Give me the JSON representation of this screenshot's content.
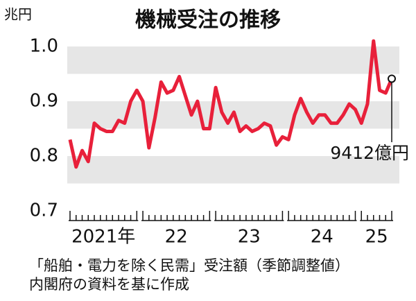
{
  "chart_data": {
    "type": "line",
    "title": "機械受注の推移",
    "y_unit": "兆円",
    "ylim": [
      0.7,
      1.0
    ],
    "yticks": [
      0.7,
      0.8,
      0.9,
      {
        "value": 1.0,
        "label": "1.0"
      }
    ],
    "bands": [
      [
        0.75,
        0.8
      ],
      [
        0.85,
        0.9
      ],
      [
        0.95,
        1.0
      ]
    ],
    "band_color": "#e6e6e6",
    "year_groups": [
      {
        "label": "2021年",
        "months": 12
      },
      {
        "label": "22",
        "months": 12
      },
      {
        "label": "23",
        "months": 12
      },
      {
        "label": "24",
        "months": 12
      },
      {
        "label": "25",
        "months": 6
      }
    ],
    "series": [
      {
        "color": "#e8203a",
        "values": [
          0.83,
          0.78,
          0.81,
          0.79,
          0.86,
          0.85,
          0.845,
          0.845,
          0.865,
          0.86,
          0.9,
          0.92,
          0.9,
          0.815,
          0.87,
          0.935,
          0.915,
          0.92,
          0.945,
          0.91,
          0.875,
          0.9,
          0.85,
          0.85,
          0.925,
          0.88,
          0.86,
          0.88,
          0.845,
          0.855,
          0.845,
          0.85,
          0.86,
          0.855,
          0.82,
          0.835,
          0.83,
          0.875,
          0.905,
          0.88,
          0.86,
          0.875,
          0.875,
          0.86,
          0.86,
          0.875,
          0.895,
          0.885,
          0.86,
          0.895,
          1.01,
          0.92,
          0.915,
          0.9412
        ]
      }
    ],
    "annotation": "9412億円",
    "notes": [
      "「船舶・電力を除く民需」受注額（季節調整値）",
      "内閣府の資料を基に作成"
    ]
  }
}
